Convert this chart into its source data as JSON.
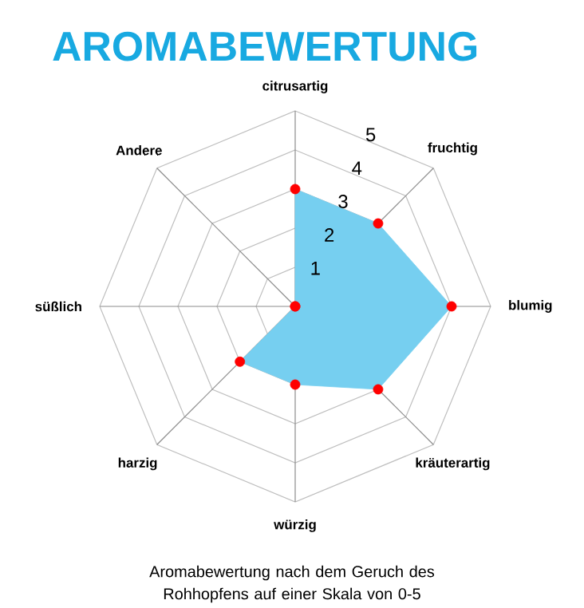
{
  "chart_data": {
    "type": "radar",
    "title": "AROMABEWERTUNG",
    "annotations": [
      "Aromabewertung nach dem Geruch des Rohhopfens auf einer Skala von 0-5"
    ],
    "categories": [
      "citrusartig",
      "fruchtig",
      "blumig",
      "kräuterartig",
      "würzig",
      "harzig",
      "süßlich",
      "Andere"
    ],
    "series": [
      {
        "color": "#76cff0",
        "values": [
          3,
          3,
          4,
          3,
          2,
          2,
          0,
          0
        ]
      }
    ],
    "ylim": [
      0,
      5
    ],
    "yticks": [
      1,
      2,
      3,
      4,
      5
    ],
    "marker": "circle",
    "grid": true
  }
}
